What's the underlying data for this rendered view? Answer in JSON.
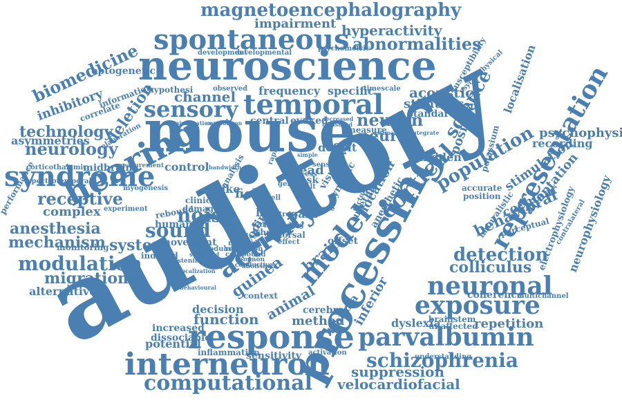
{
  "colors": {
    "word": "#4a7fb1",
    "background": "#ffffff"
  },
  "words": [
    "auditory",
    "mouse",
    "neuroscience",
    "processing",
    "response",
    "interneuron",
    "hearing",
    "syndrome",
    "spontaneous",
    "temporal",
    "sensory",
    "magnetoencephalography",
    "parvalbumin",
    "schizophrenia",
    "computational",
    "neuronal",
    "exposure",
    "activity",
    "model",
    "representation",
    "cortical",
    "modulation",
    "noise",
    "sound",
    "detection",
    "population",
    "science",
    "abnormalities",
    "hyperactivity",
    "impairment",
    "biomedicine",
    "neurology",
    "technology",
    "anesthesia",
    "mechanism",
    "migration",
    "system",
    "receptive",
    "complex",
    "velocardiofacial",
    "suppression",
    "function",
    "guinea",
    "brain",
    "animal",
    "colliculus",
    "behavioral",
    "cochlear",
    "stimulation",
    "adaptation",
    "recording",
    "psychophysic",
    "localisation",
    "neurophysiology",
    "electrophysiology",
    "acoustic",
    "stimulus",
    "standard",
    "frequency",
    "specific",
    "channel",
    "neuron",
    "neural",
    "inhibitory",
    "deletion",
    "alternative",
    "optogenetic",
    "method",
    "repetition",
    "dyslexia",
    "coherence",
    "sensitivity",
    "inflammation",
    "potential",
    "decision",
    "increased",
    "dissociable",
    "positive",
    "hidden",
    "spike",
    "field",
    "control",
    "midbrain",
    "asymmetries",
    "central",
    "evoked",
    "cerebral",
    "trauma",
    "inferior",
    "head",
    "loss",
    "gain",
    "offset",
    "multichannel",
    "brainstem",
    "unaffected",
    "accurate",
    "position",
    "perceptual",
    "naturalistic",
    "potassium",
    "psychometric",
    "developmental",
    "development",
    "observed",
    "hypothesi",
    "correlate",
    "information",
    "performance",
    "corticothalamic",
    "spectrotemporal",
    "myogenesis",
    "rebound",
    "clinical",
    "damage",
    "human",
    "movement",
    "induced",
    "monitoring",
    "experiment",
    "divisive",
    "network",
    "context",
    "activation",
    "understanding",
    "contralateral",
    "susceptibility",
    "psychophysical",
    "timescale",
    "measure",
    "deficit",
    "task",
    "success",
    "result",
    "genetic",
    "rapid",
    "visual",
    "analysis",
    "administration",
    "comparison",
    "elaboration",
    "measurement",
    "finding",
    "reduction",
    "compound",
    "modulator",
    "sustained",
    "common",
    "conductive",
    "abolished",
    "listening",
    "factor",
    "relevant",
    "location",
    "disorder",
    "anesthetic",
    "urethane",
    "dynamic",
    "estimation",
    "integrate",
    "decreased",
    "measured",
    "sensitive",
    "bandwidth",
    "effect",
    "cell",
    "stress",
    "kinase",
    "wheel",
    "early",
    "layer",
    "dorsal",
    "coding",
    "simple",
    "behavioural",
    "vocalization"
  ]
}
